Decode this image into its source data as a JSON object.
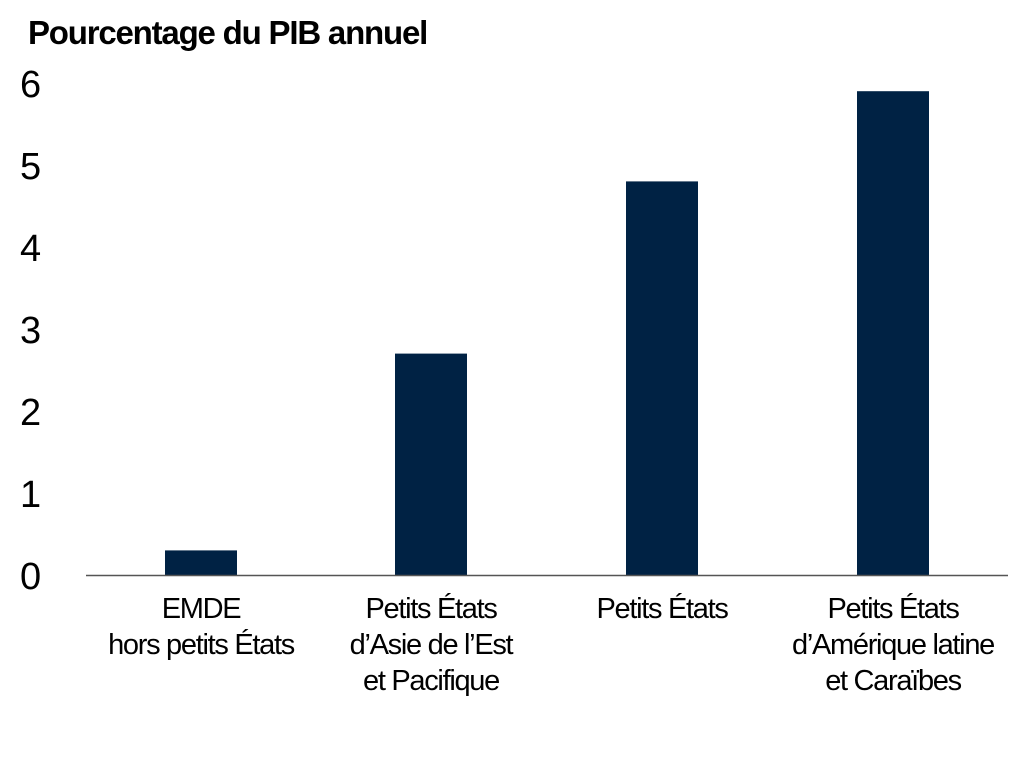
{
  "chart_data": {
    "type": "bar",
    "title": "Pourcentage du PIB annuel",
    "xlabel": "",
    "ylabel": "",
    "categories": [
      [
        "EMDE",
        "hors petits États"
      ],
      [
        "Petits États",
        "d’Asie de l’Est",
        "et Pacifique"
      ],
      [
        "Petits États"
      ],
      [
        "Petits États",
        "d’Amérique latine",
        "et Caraïbes"
      ]
    ],
    "values": [
      0.3,
      2.7,
      4.8,
      5.9
    ],
    "ylim": [
      0,
      6
    ],
    "yticks": [
      0,
      1,
      2,
      3,
      4,
      5,
      6
    ],
    "grid": false,
    "legend": "none",
    "colors": {
      "bar": "#002244",
      "axis": "#555555",
      "text": "#000000"
    }
  }
}
